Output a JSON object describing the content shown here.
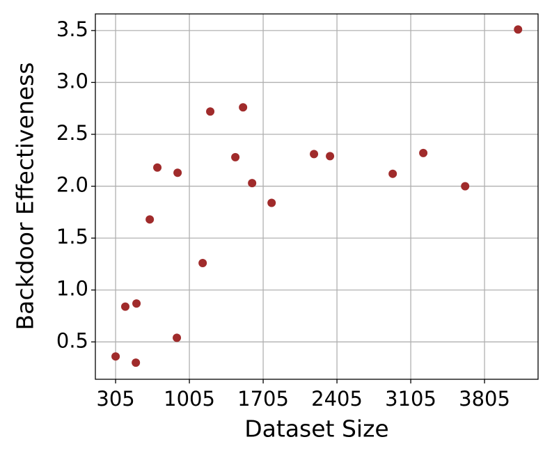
{
  "chart_data": {
    "type": "scatter",
    "x_label": "Dataset Size",
    "y_label": "Backdoor Effectiveness",
    "x": [
      305,
      397,
      497,
      503,
      629,
      701,
      886,
      893,
      1131,
      1203,
      1441,
      1514,
      1600,
      1785,
      2187,
      2339,
      2934,
      3224,
      3621,
      4123
    ],
    "values": [
      0.36,
      0.84,
      0.3,
      0.87,
      1.68,
      2.18,
      0.54,
      2.13,
      1.26,
      2.72,
      2.28,
      2.76,
      2.03,
      1.84,
      2.31,
      2.29,
      2.12,
      2.32,
      2.0,
      3.51
    ],
    "color": "#a02b2b",
    "xlim": [
      113,
      4313
    ],
    "ylim": [
      0.14,
      3.66
    ],
    "xticks": [
      305,
      1005,
      1705,
      2405,
      3105,
      3805
    ],
    "yticks": [
      0.5,
      {
        "value": 1.0,
        "label": "1.0"
      },
      1.5,
      {
        "value": 2.0,
        "label": "2.0"
      },
      2.5,
      {
        "value": 3.0,
        "label": "3.0"
      },
      3.5
    ],
    "grid": true
  }
}
